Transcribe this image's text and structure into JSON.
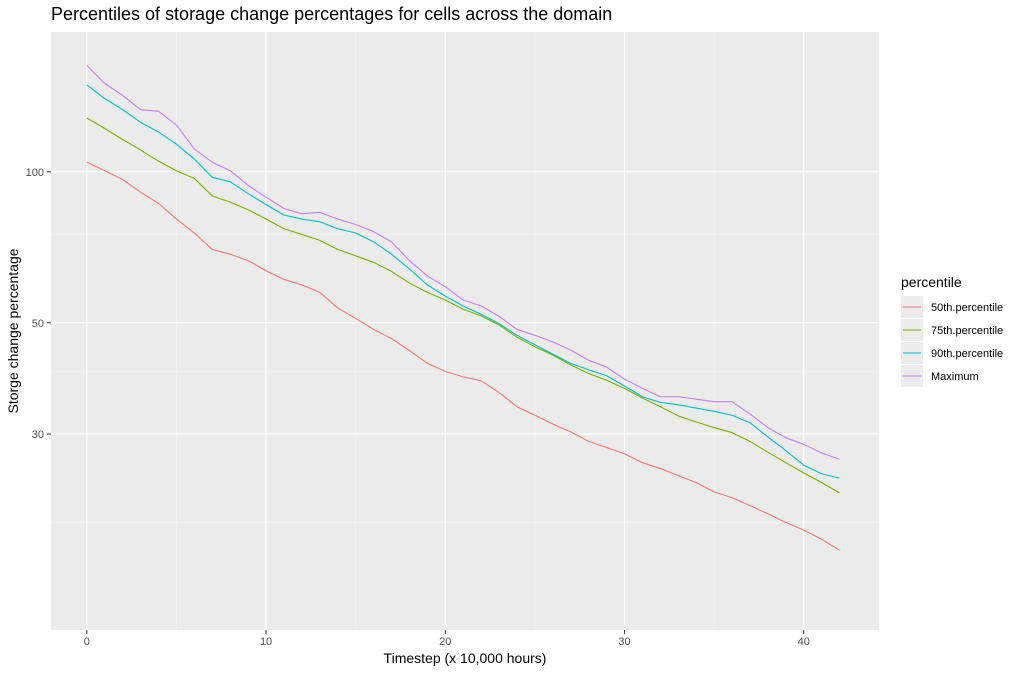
{
  "chart_data": {
    "type": "line",
    "title": "Percentiles of storage change percentages for cells across the domain",
    "xlabel": "Timestep (x 10,000 hours)",
    "ylabel": "Storge change percentage",
    "y_scale": "log",
    "xlim": [
      -2,
      44.2
    ],
    "ylim": [
      12.2,
      190
    ],
    "x_ticks": [
      0,
      10,
      20,
      30,
      40
    ],
    "x_tick_labels": [
      "0",
      "10",
      "20",
      "30",
      "40"
    ],
    "y_ticks": [
      30,
      50,
      100
    ],
    "y_tick_labels": [
      "30",
      "50",
      "100"
    ],
    "y_minor_ticks": [
      20,
      40,
      75
    ],
    "grid": true,
    "legend_position": "right",
    "legend_title": "percentile",
    "x": [
      0,
      1,
      2,
      3,
      4,
      5,
      6,
      7,
      8,
      9,
      10,
      11,
      12,
      13,
      14,
      15,
      16,
      17,
      18,
      19,
      20,
      21,
      22,
      23,
      24,
      25,
      26,
      27,
      28,
      29,
      30,
      31,
      32,
      33,
      34,
      35,
      36,
      37,
      38,
      39,
      40,
      41,
      42
    ],
    "series": [
      {
        "name": "50th.percentile",
        "color": "#F8766D",
        "values": [
          104.5,
          100.5,
          96.5,
          91,
          86.5,
          80.5,
          75.5,
          70,
          68.5,
          66.5,
          63.5,
          61,
          59.5,
          57.5,
          53.5,
          51,
          48.5,
          46.5,
          44,
          41.5,
          40,
          39,
          38.3,
          36.3,
          34,
          32.7,
          31.4,
          30.3,
          29,
          28.2,
          27.4,
          26.3,
          25.6,
          24.8,
          24,
          23,
          22.4,
          21.6,
          20.8,
          20,
          19.3,
          18.5,
          17.6
        ]
      },
      {
        "name": "75th.percentile",
        "color": "#7CAE00",
        "values": [
          128,
          122,
          116,
          110.5,
          105,
          100.5,
          97,
          89.5,
          87,
          84,
          80.5,
          77,
          75,
          73,
          70,
          68,
          66,
          63.3,
          60,
          57.5,
          55.5,
          53.2,
          51.6,
          49.5,
          46.8,
          44.8,
          43.1,
          41.2,
          39.6,
          38.4,
          37,
          35.4,
          34,
          32.6,
          31.7,
          30.9,
          30.2,
          29,
          27.6,
          26.3,
          25.1,
          24,
          22.9
        ]
      },
      {
        "name": "90th.percentile",
        "color": "#00BFC4",
        "values": [
          149,
          140,
          133,
          125.5,
          120,
          113.5,
          106,
          97.5,
          95.5,
          90.5,
          86,
          82,
          80.5,
          79.5,
          77,
          75.5,
          72.5,
          68.5,
          64,
          59.5,
          56.5,
          54,
          52,
          49.8,
          47.2,
          45.2,
          43.3,
          41.5,
          40.3,
          39.2,
          37.4,
          35.6,
          34.7,
          34.3,
          33.8,
          33.3,
          32.7,
          31.6,
          29.6,
          27.8,
          26,
          25,
          24.5
        ]
      },
      {
        "name": "Maximum",
        "color": "#C77CFF",
        "values": [
          163,
          150,
          142,
          133,
          132,
          124,
          111,
          104.5,
          100.5,
          94,
          89,
          84.5,
          82.5,
          83,
          80.5,
          78.5,
          76,
          72.5,
          66.5,
          62,
          59,
          55.5,
          54,
          51.5,
          48.5,
          47.2,
          45.8,
          44.1,
          42.1,
          40.8,
          38.6,
          37,
          35.6,
          35.6,
          35.2,
          34.8,
          34.8,
          32.9,
          30.9,
          29.5,
          28.6,
          27.5,
          26.7
        ]
      }
    ]
  }
}
